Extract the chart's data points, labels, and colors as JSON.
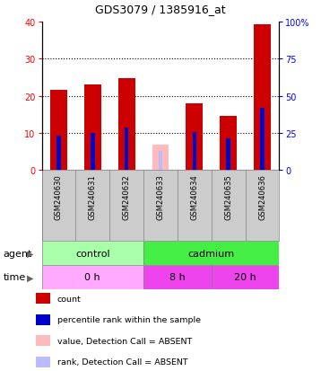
{
  "title": "GDS3079 / 1385916_at",
  "samples": [
    "GSM240630",
    "GSM240631",
    "GSM240632",
    "GSM240633",
    "GSM240634",
    "GSM240635",
    "GSM240636"
  ],
  "count_values": [
    21.5,
    23.0,
    24.8,
    null,
    18.0,
    14.7,
    39.2
  ],
  "rank_values": [
    9.2,
    10.0,
    11.5,
    null,
    10.2,
    8.5,
    16.8
  ],
  "absent_count_values": [
    null,
    null,
    null,
    6.8,
    null,
    null,
    null
  ],
  "absent_rank_values": [
    null,
    null,
    null,
    5.2,
    null,
    null,
    null
  ],
  "count_color": "#cc0000",
  "rank_color": "#0000cc",
  "absent_count_color": "#ffbbbb",
  "absent_rank_color": "#bbbbff",
  "ylim_left": [
    0,
    40
  ],
  "ylim_right": [
    0,
    100
  ],
  "yticks_left": [
    0,
    10,
    20,
    30,
    40
  ],
  "yticks_right": [
    0,
    25,
    50,
    75,
    100
  ],
  "ytick_labels_right": [
    "0",
    "25",
    "50",
    "75",
    "100%"
  ],
  "count_bar_width": 0.5,
  "rank_bar_width": 0.12,
  "agent_control_color": "#aaffaa",
  "agent_cadmium_color": "#44ee44",
  "time0_color": "#ffaaff",
  "time8_color": "#ee44ee",
  "time20_color": "#ee44ee",
  "sample_bg_color": "#cccccc",
  "bg_color": "#ffffff",
  "legend_items": [
    {
      "label": "count",
      "color": "#cc0000"
    },
    {
      "label": "percentile rank within the sample",
      "color": "#0000cc"
    },
    {
      "label": "value, Detection Call = ABSENT",
      "color": "#ffbbbb"
    },
    {
      "label": "rank, Detection Call = ABSENT",
      "color": "#bbbbff"
    }
  ]
}
